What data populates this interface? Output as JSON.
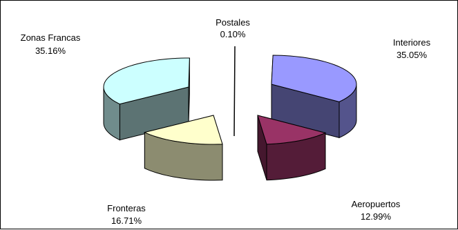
{
  "chart_data": {
    "type": "pie",
    "title": "",
    "categories": [
      "Interiores",
      "Aeropuertos",
      "Fronteras",
      "Zonas Francas",
      "Postales"
    ],
    "values": [
      35.05,
      12.99,
      16.71,
      35.16,
      0.1
    ],
    "labels": [
      {
        "name": "Interiores",
        "value": "35.05%"
      },
      {
        "name": "Aeropuertos",
        "value": "12.99%"
      },
      {
        "name": "Fronteras",
        "value": "16.71%"
      },
      {
        "name": "Zonas Francas",
        "value": "35.16%"
      },
      {
        "name": "Postales",
        "value": "0.10%"
      }
    ],
    "colors": {
      "Interiores": "#9999ff",
      "Aeropuertos": "#993366",
      "Fronteras": "#ffffcc",
      "Zonas Francas": "#ccffff",
      "Postales": "#000000"
    },
    "exploded": true,
    "three_d": true
  }
}
